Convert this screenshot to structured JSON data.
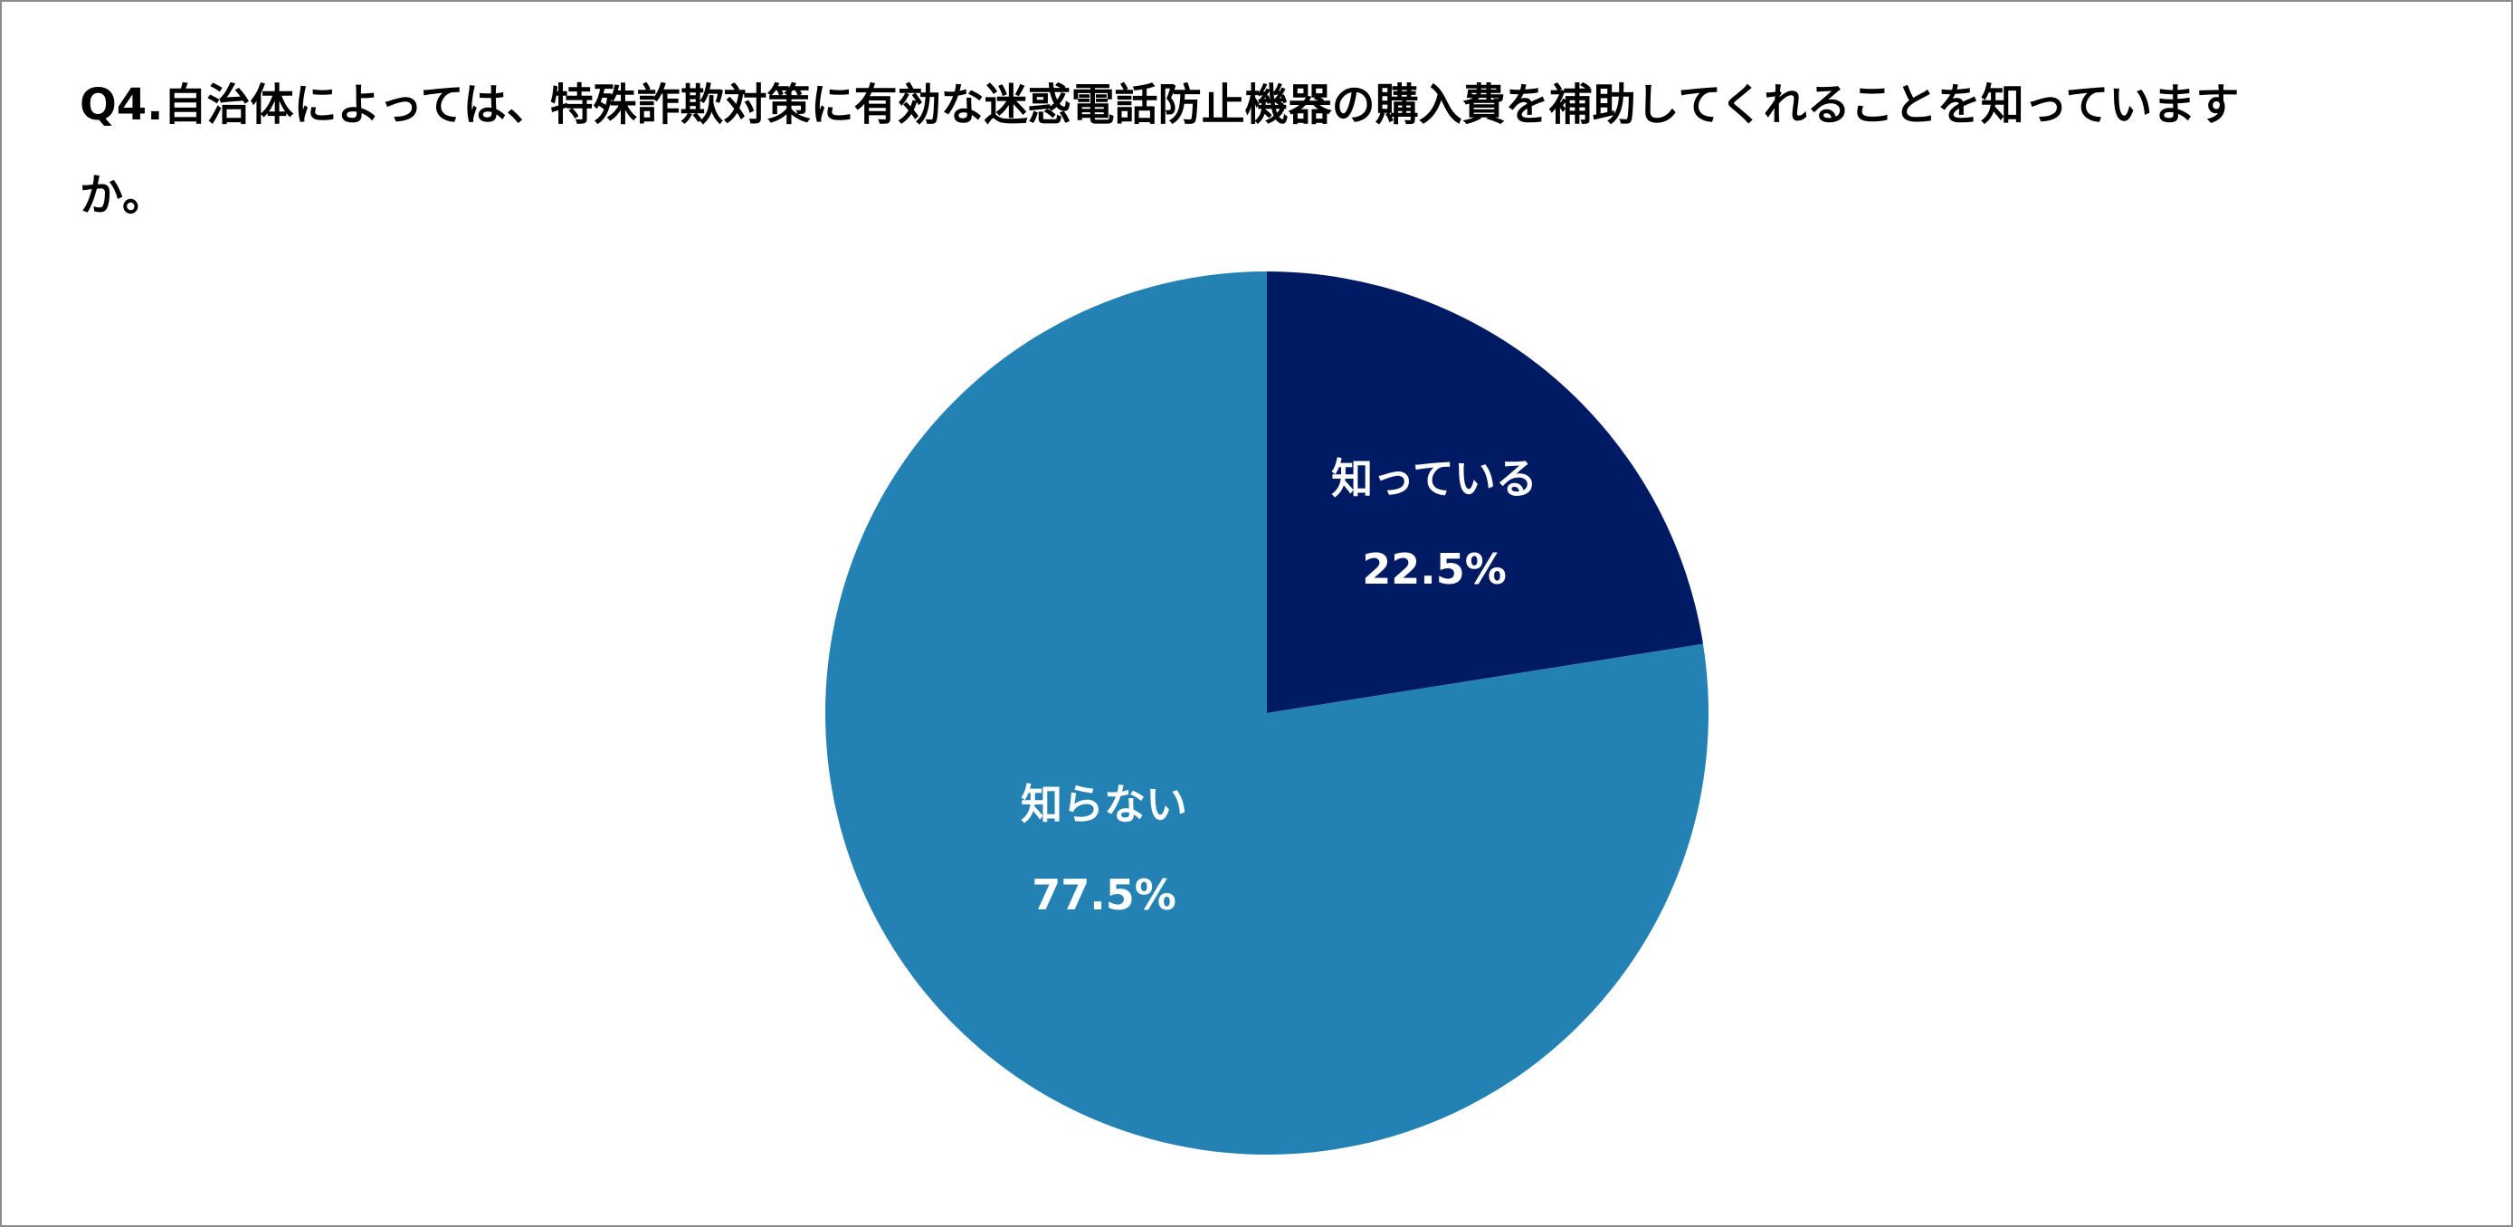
{
  "title": "Q4.自治体によっては、特殊詐欺対策に有効な迷惑電話防止機器の購入費を補助してくれることを知っていますか。",
  "chart_data": {
    "type": "pie",
    "title": "Q4.自治体によっては、特殊詐欺対策に有効な迷惑電話防止機器の購入費を補助してくれることを知っていますか。",
    "start": "12 o'clock",
    "direction": "clockwise",
    "slices": [
      {
        "label": "知っている",
        "value": 22.5,
        "value_label": "22.5%",
        "color": "#001a64"
      },
      {
        "label": "知らない",
        "value": 77.5,
        "value_label": "77.5%",
        "color": "#2481b4"
      }
    ],
    "legend": "none"
  }
}
